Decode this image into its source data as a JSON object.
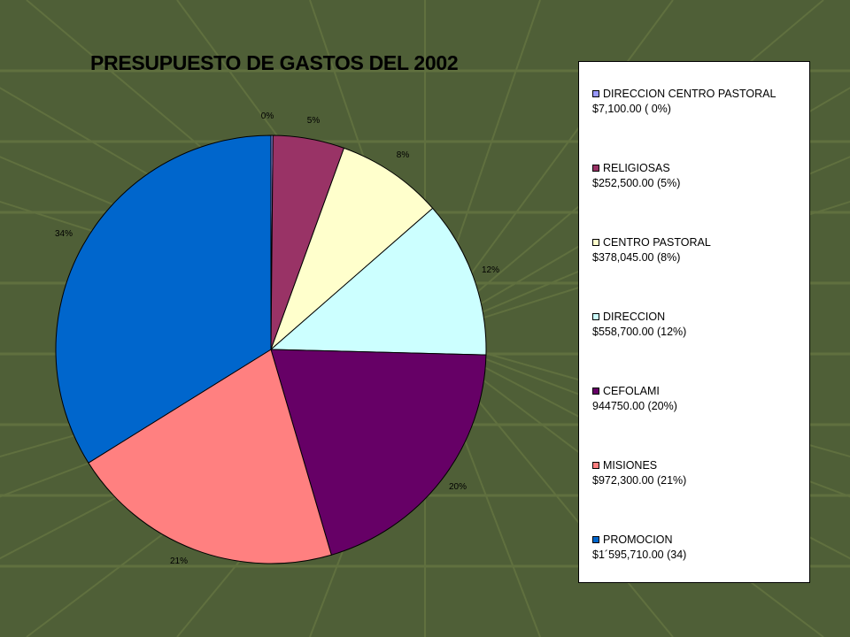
{
  "colors": {
    "background": "#4f5f37",
    "grid_line": "#60703f"
  },
  "chart_data": {
    "type": "pie",
    "title": "PRESUPUESTO DE GASTOS DEL 2002",
    "legend_position": "right",
    "slices": [
      {
        "label": "DIRECCION CENTRO PASTORAL",
        "amount_text": "$7,100.00 ( 0%)",
        "value": 7100,
        "percent_label": "0%",
        "color": "#9999ff"
      },
      {
        "label": "RELIGIOSAS",
        "amount_text": "$252,500.00 (5%)",
        "value": 252500,
        "percent_label": "5%",
        "color": "#993366"
      },
      {
        "label": "CENTRO PASTORAL",
        "amount_text": "$378,045.00 (8%)",
        "value": 378045,
        "percent_label": "8%",
        "color": "#ffffcc"
      },
      {
        "label": "DIRECCION",
        "amount_text": "$558,700.00 (12%)",
        "value": 558700,
        "percent_label": "12%",
        "color": "#ccffff"
      },
      {
        "label": "CEFOLAMI",
        "amount_text": "944750.00 (20%)",
        "value": 944750,
        "percent_label": "20%",
        "color": "#660066"
      },
      {
        "label": "MISIONES",
        "amount_text": "$972,300.00 (21%)",
        "value": 972300,
        "percent_label": "21%",
        "color": "#ff8080"
      },
      {
        "label": "PROMOCION",
        "amount_text": "$1´595,710.00 (34)",
        "value": 1595710,
        "percent_label": "34%",
        "color": "#0066cc"
      }
    ]
  }
}
